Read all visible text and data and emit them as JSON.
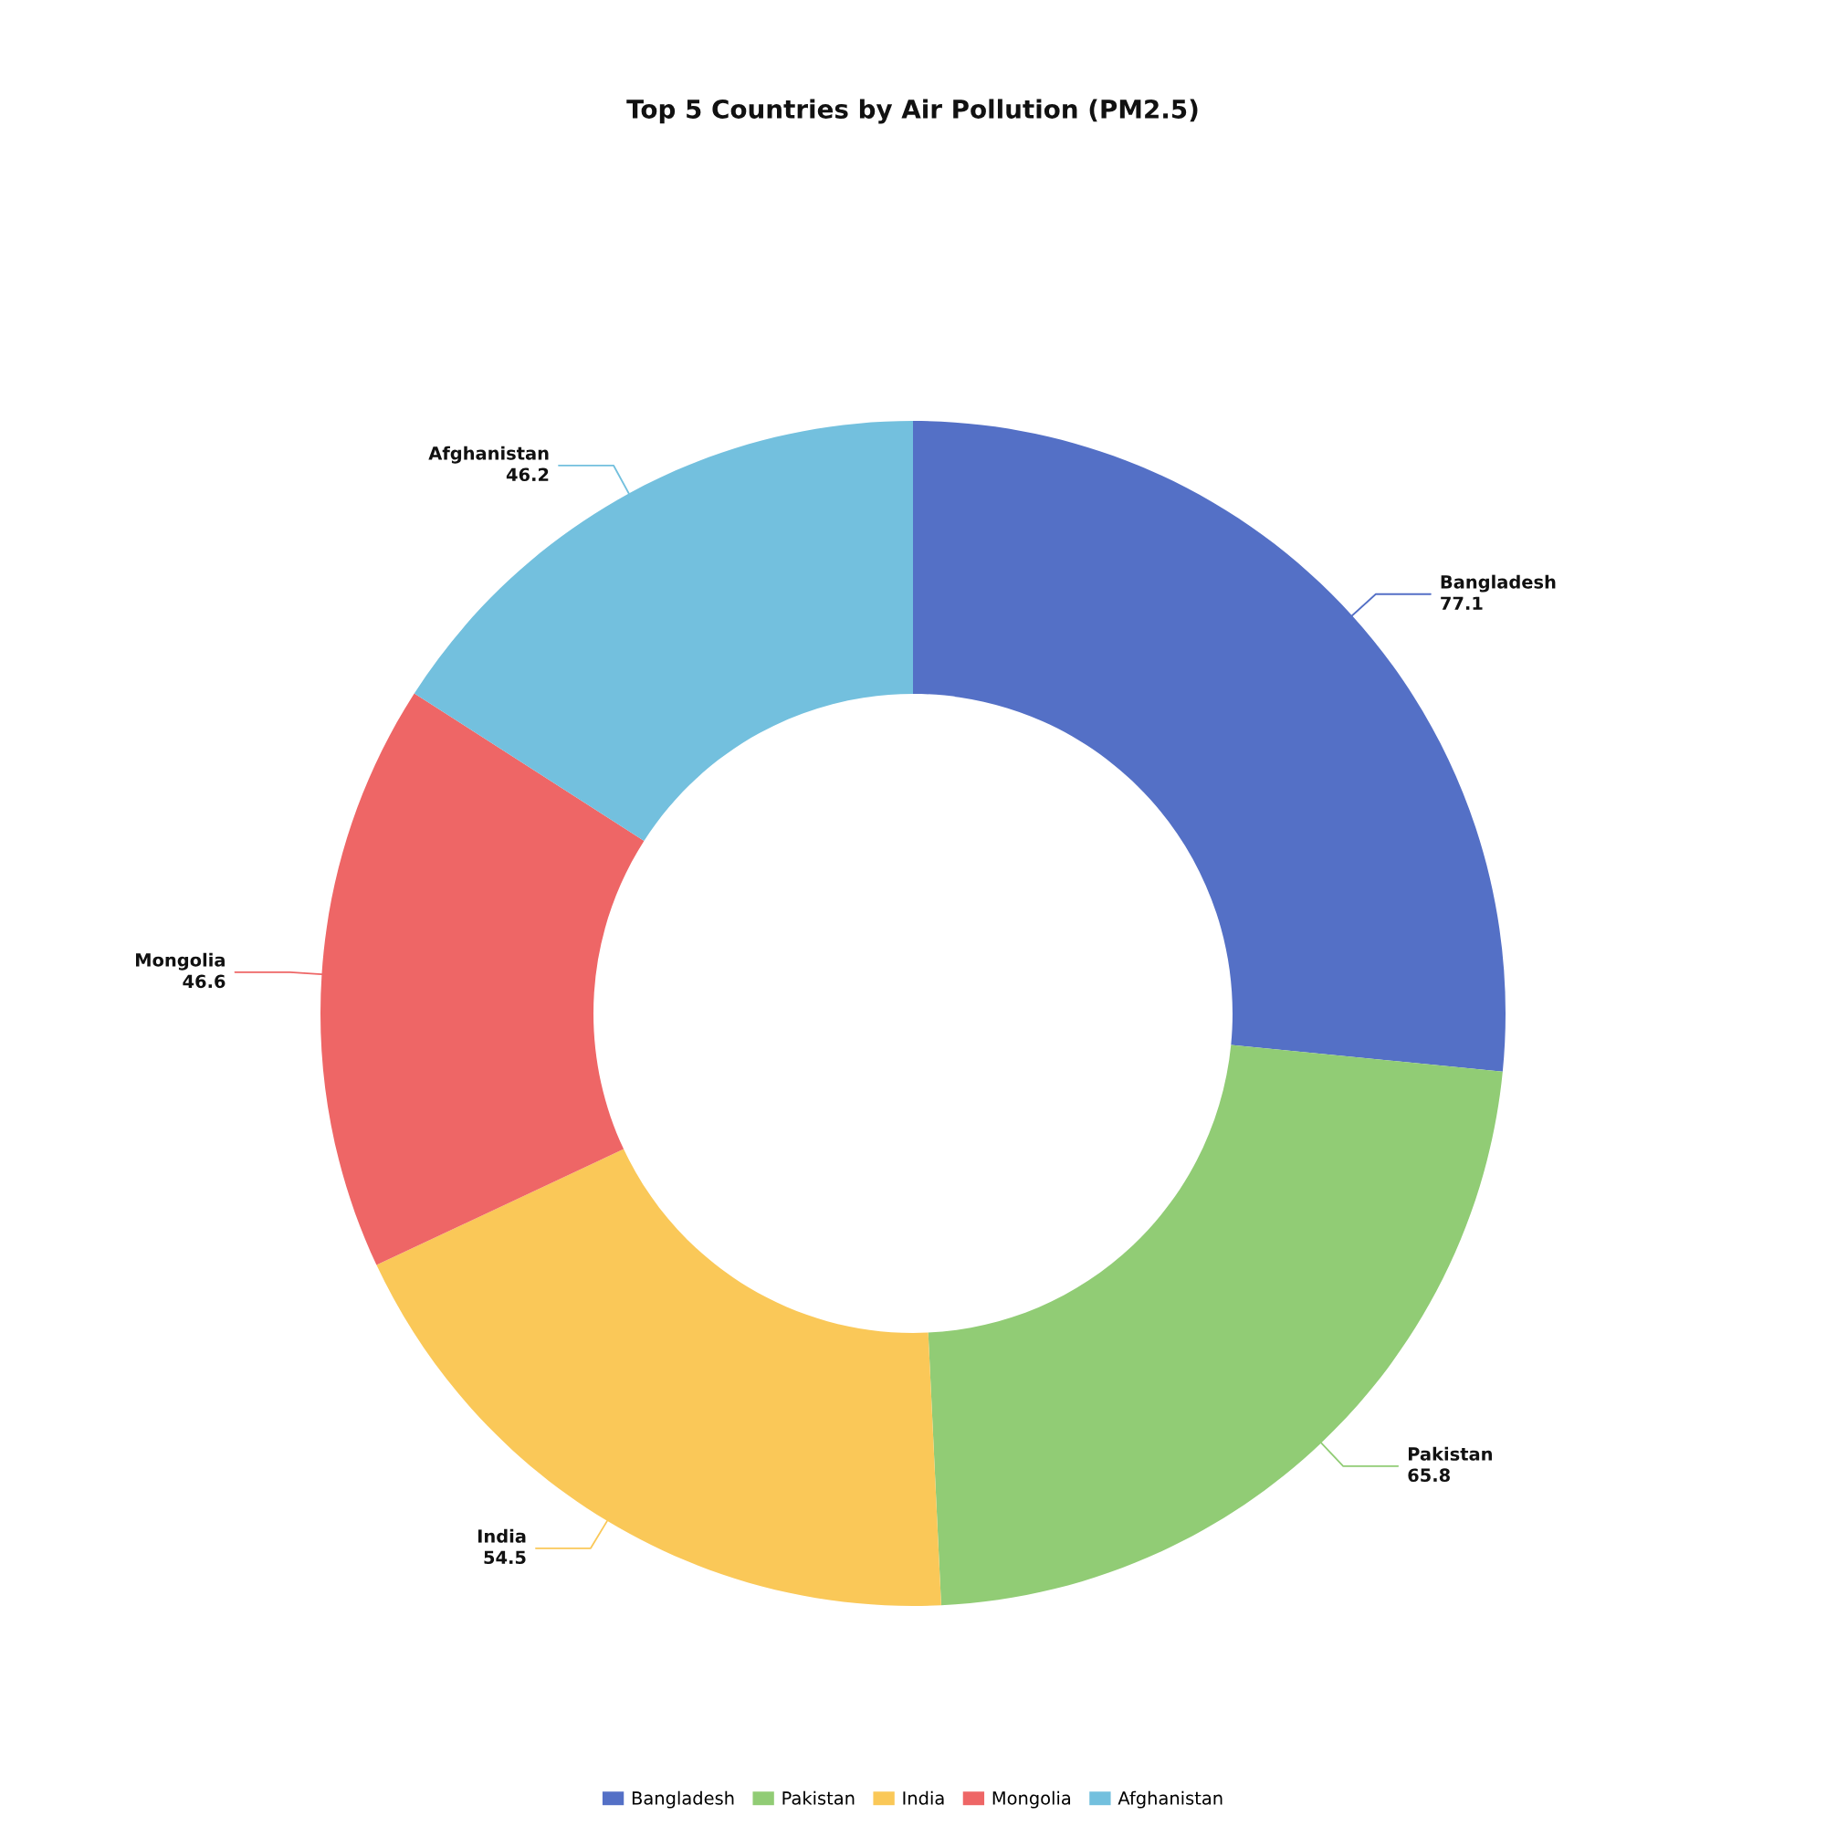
{
  "chart_data": {
    "type": "donut",
    "title": "Top 5 Countries by Air Pollution (PM2.5)",
    "categories": [
      "Bangladesh",
      "Pakistan",
      "India",
      "Mongolia",
      "Afghanistan"
    ],
    "values": [
      77.1,
      65.8,
      54.5,
      46.6,
      46.2
    ],
    "colors": [
      "#5470c6",
      "#91cc75",
      "#fac858",
      "#ee6666",
      "#73c0de"
    ],
    "data_labels": true,
    "legend": "bottom"
  }
}
